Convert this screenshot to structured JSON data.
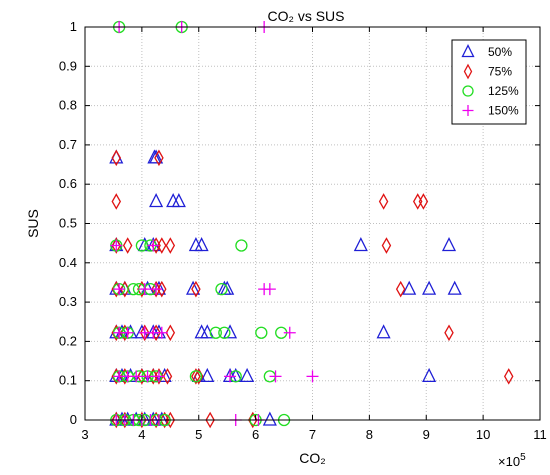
{
  "chart_data": {
    "type": "scatter",
    "title": "CO₂  vs SUS",
    "xlabel": "CO₂",
    "ylabel": "SUS",
    "x_multiplier": "×10",
    "x_multiplier_exp": "5",
    "xlim": [
      3,
      11
    ],
    "ylim": [
      0,
      1
    ],
    "xticks": [
      3,
      4,
      5,
      6,
      7,
      8,
      9,
      10,
      11
    ],
    "yticks": [
      0,
      0.1,
      0.2,
      0.3,
      0.4,
      0.5,
      0.6,
      0.7,
      0.8,
      0.9,
      1
    ],
    "grid": true,
    "legend_position": "top-right",
    "series": [
      {
        "name": "50%",
        "marker": "triangle",
        "color": "#1f1fd6",
        "points": [
          [
            3.55,
            0.667
          ],
          [
            4.22,
            0.667
          ],
          [
            4.25,
            0.667
          ],
          [
            4.25,
            0.556
          ],
          [
            4.55,
            0.556
          ],
          [
            4.65,
            0.556
          ],
          [
            3.55,
            0.444
          ],
          [
            4.05,
            0.444
          ],
          [
            4.2,
            0.444
          ],
          [
            4.95,
            0.444
          ],
          [
            5.05,
            0.444
          ],
          [
            7.85,
            0.444
          ],
          [
            9.4,
            0.444
          ],
          [
            3.55,
            0.333
          ],
          [
            3.7,
            0.333
          ],
          [
            4.1,
            0.333
          ],
          [
            4.3,
            0.333
          ],
          [
            4.9,
            0.333
          ],
          [
            5.45,
            0.333
          ],
          [
            5.5,
            0.333
          ],
          [
            8.7,
            0.333
          ],
          [
            9.05,
            0.333
          ],
          [
            9.5,
            0.333
          ],
          [
            3.55,
            0.222
          ],
          [
            3.65,
            0.222
          ],
          [
            3.8,
            0.222
          ],
          [
            4.0,
            0.222
          ],
          [
            4.2,
            0.222
          ],
          [
            4.3,
            0.222
          ],
          [
            5.05,
            0.222
          ],
          [
            5.15,
            0.222
          ],
          [
            5.55,
            0.222
          ],
          [
            8.25,
            0.222
          ],
          [
            3.55,
            0.111
          ],
          [
            3.65,
            0.111
          ],
          [
            3.8,
            0.111
          ],
          [
            4.0,
            0.111
          ],
          [
            4.2,
            0.111
          ],
          [
            4.4,
            0.111
          ],
          [
            5.0,
            0.111
          ],
          [
            5.15,
            0.111
          ],
          [
            5.55,
            0.111
          ],
          [
            5.65,
            0.111
          ],
          [
            5.85,
            0.111
          ],
          [
            9.05,
            0.111
          ],
          [
            3.55,
            0
          ],
          [
            3.65,
            0
          ],
          [
            3.75,
            0
          ],
          [
            3.9,
            0
          ],
          [
            4.05,
            0
          ],
          [
            4.2,
            0
          ],
          [
            4.35,
            0
          ],
          [
            6.25,
            0
          ]
        ]
      },
      {
        "name": "75%",
        "marker": "diamond",
        "color": "#e01414",
        "points": [
          [
            3.55,
            0.667
          ],
          [
            4.3,
            0.667
          ],
          [
            3.55,
            0.556
          ],
          [
            8.25,
            0.556
          ],
          [
            8.85,
            0.556
          ],
          [
            8.95,
            0.556
          ],
          [
            3.55,
            0.444
          ],
          [
            3.75,
            0.444
          ],
          [
            4.25,
            0.444
          ],
          [
            4.35,
            0.444
          ],
          [
            4.5,
            0.444
          ],
          [
            8.3,
            0.444
          ],
          [
            3.55,
            0.333
          ],
          [
            3.7,
            0.333
          ],
          [
            4.0,
            0.333
          ],
          [
            4.25,
            0.333
          ],
          [
            4.35,
            0.333
          ],
          [
            4.95,
            0.333
          ],
          [
            8.55,
            0.333
          ],
          [
            3.55,
            0.222
          ],
          [
            3.7,
            0.222
          ],
          [
            4.05,
            0.222
          ],
          [
            4.25,
            0.222
          ],
          [
            4.5,
            0.222
          ],
          [
            9.4,
            0.222
          ],
          [
            3.55,
            0.111
          ],
          [
            3.7,
            0.111
          ],
          [
            4.0,
            0.111
          ],
          [
            4.2,
            0.111
          ],
          [
            4.3,
            0.111
          ],
          [
            4.45,
            0.111
          ],
          [
            4.95,
            0.111
          ],
          [
            5.0,
            0.111
          ],
          [
            10.45,
            0.111
          ],
          [
            3.55,
            0
          ],
          [
            3.7,
            0
          ],
          [
            4.0,
            0
          ],
          [
            4.25,
            0
          ],
          [
            4.4,
            0
          ],
          [
            4.5,
            0
          ],
          [
            5.2,
            0
          ],
          [
            5.95,
            0
          ]
        ]
      },
      {
        "name": "125%",
        "marker": "circle",
        "color": "#22dd22",
        "points": [
          [
            3.6,
            1
          ],
          [
            4.7,
            1
          ],
          [
            3.55,
            0.444
          ],
          [
            4.0,
            0.444
          ],
          [
            4.15,
            0.444
          ],
          [
            5.75,
            0.444
          ],
          [
            3.6,
            0.333
          ],
          [
            3.85,
            0.333
          ],
          [
            3.95,
            0.333
          ],
          [
            4.15,
            0.333
          ],
          [
            5.4,
            0.333
          ],
          [
            3.6,
            0.222
          ],
          [
            3.75,
            0.222
          ],
          [
            5.3,
            0.222
          ],
          [
            5.45,
            0.222
          ],
          [
            6.1,
            0.222
          ],
          [
            6.45,
            0.222
          ],
          [
            3.6,
            0.111
          ],
          [
            3.75,
            0.111
          ],
          [
            3.95,
            0.111
          ],
          [
            4.1,
            0.111
          ],
          [
            4.25,
            0.111
          ],
          [
            4.95,
            0.111
          ],
          [
            5.65,
            0.111
          ],
          [
            6.25,
            0.111
          ],
          [
            3.55,
            0
          ],
          [
            3.7,
            0
          ],
          [
            3.85,
            0
          ],
          [
            3.95,
            0
          ],
          [
            4.05,
            0
          ],
          [
            4.25,
            0
          ],
          [
            4.4,
            0
          ],
          [
            6.0,
            0
          ],
          [
            6.5,
            0
          ]
        ]
      },
      {
        "name": "150%",
        "marker": "plus",
        "color": "#ee00ee",
        "points": [
          [
            3.6,
            1
          ],
          [
            4.7,
            1
          ],
          [
            6.15,
            1
          ],
          [
            3.55,
            0.444
          ],
          [
            4.2,
            0.444
          ],
          [
            3.6,
            0.333
          ],
          [
            4.05,
            0.333
          ],
          [
            4.25,
            0.333
          ],
          [
            6.15,
            0.333
          ],
          [
            6.25,
            0.333
          ],
          [
            3.6,
            0.222
          ],
          [
            3.75,
            0.222
          ],
          [
            4.05,
            0.222
          ],
          [
            4.2,
            0.222
          ],
          [
            4.35,
            0.222
          ],
          [
            6.6,
            0.222
          ],
          [
            3.6,
            0.111
          ],
          [
            3.75,
            0.111
          ],
          [
            3.9,
            0.111
          ],
          [
            4.1,
            0.111
          ],
          [
            4.3,
            0.111
          ],
          [
            5.55,
            0.111
          ],
          [
            6.35,
            0.111
          ],
          [
            7.0,
            0.111
          ],
          [
            3.55,
            0
          ],
          [
            3.7,
            0
          ],
          [
            3.85,
            0
          ],
          [
            4.0,
            0
          ],
          [
            4.15,
            0
          ],
          [
            4.3,
            0
          ],
          [
            5.65,
            0
          ],
          [
            6.05,
            0
          ]
        ]
      }
    ]
  }
}
